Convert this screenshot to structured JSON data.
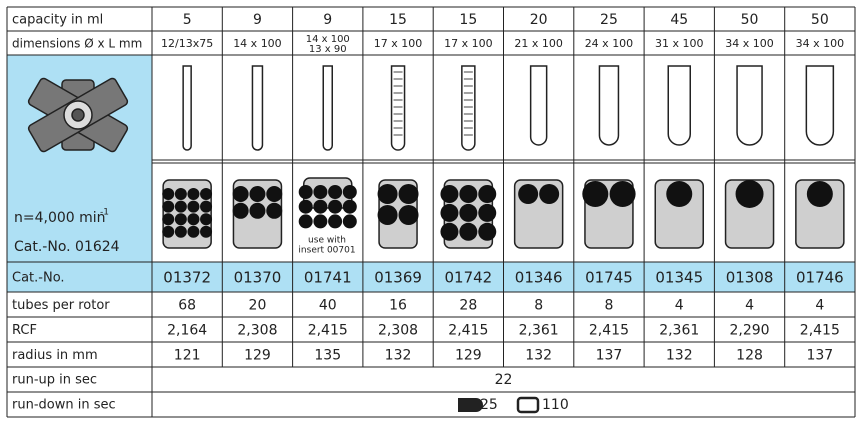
{
  "table": {
    "rows": [
      {
        "label": "capacity in ml",
        "cells": [
          "5",
          "9",
          "9",
          "15",
          "15",
          "20",
          "25",
          "45",
          "50",
          "50"
        ]
      },
      {
        "label": "dimensions Ø x L mm",
        "cells": [
          "12/13x75",
          "14 x 100",
          [
            "14 x 100",
            "13 x 90"
          ],
          "17 x 100",
          "17 x 100",
          "21 x 100",
          "24 x 100",
          "31 x 100",
          "34 x 100",
          "34 x 100"
        ]
      },
      {
        "label": "Cat.-No.",
        "cells": [
          "01372",
          "01370",
          "01741",
          "01369",
          "01742",
          "01346",
          "01745",
          "01345",
          "01308",
          "01746"
        ]
      },
      {
        "label": "tubes per rotor",
        "cells": [
          "68",
          "20",
          "40",
          "16",
          "28",
          "8",
          "8",
          "4",
          "4",
          "4"
        ]
      },
      {
        "label": "RCF",
        "cells": [
          "2,164",
          "2,308",
          "2,415",
          "2,308",
          "2,415",
          "2,361",
          "2,415",
          "2,361",
          "2,290",
          "2,415"
        ]
      },
      {
        "label": "radius in mm",
        "cells": [
          "121",
          "129",
          "135",
          "132",
          "129",
          "132",
          "137",
          "132",
          "128",
          "137"
        ]
      }
    ],
    "run_up": {
      "label": "run-up in sec",
      "value": "22"
    },
    "run_down": {
      "label": "run-down in sec",
      "values": [
        "25",
        "110"
      ]
    },
    "rotor": {
      "speed": "n=4,000 min",
      "speed_exponent": "-1",
      "cat_no": "Cat.-No. 01624"
    },
    "insert_note": [
      "use with",
      "insert 00701"
    ]
  }
}
